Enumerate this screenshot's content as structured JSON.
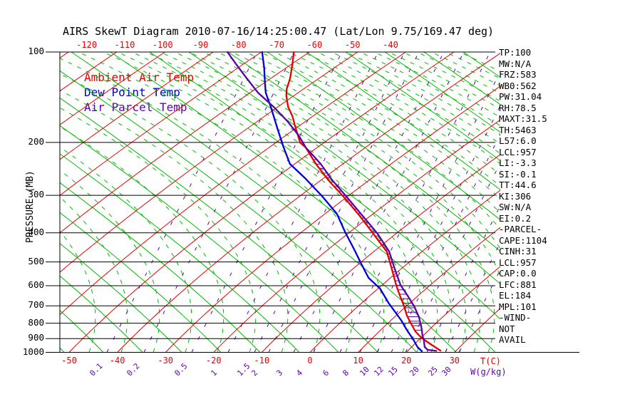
{
  "title": "AIRS SkewT Diagram 2010-07-16/14:25:00.47 (Lat/Lon 9.75/169.47 deg)",
  "colors": {
    "ambient": "#e60000",
    "dewpoint": "#0000dd",
    "parcel": "#5c00a8",
    "adiabat_green": "#00bb00",
    "isotherm_red": "#e60000",
    "grid_black": "#000000"
  },
  "legend": [
    {
      "label": "Ambient Air Temp",
      "color": "ambient"
    },
    {
      "label": "Dew Point Temp",
      "color": "dewpoint"
    },
    {
      "label": "Air Parcel Temp",
      "color": "parcel"
    }
  ],
  "axes": {
    "pressure_title": "PRESSURE (MB)",
    "pressure_ticks": [
      100,
      200,
      300,
      400,
      500,
      600,
      700,
      800,
      900,
      1000
    ],
    "temp_unit": "T(C)",
    "mixing_unit": "W(g/kg)",
    "top_temp_ticks": [
      -120,
      -110,
      -100,
      -90,
      -80,
      -70,
      -60,
      -50,
      -40
    ],
    "bottom_temp_ticks": [
      -50,
      -40,
      -30,
      -20,
      -10,
      0,
      10,
      20,
      30
    ],
    "mixing_ticks": [
      [
        "0.1",
        138
      ],
      [
        "0.2",
        190
      ],
      [
        "0.5",
        257
      ],
      [
        "1",
        308
      ],
      [
        "1.5",
        345
      ],
      [
        "2",
        365
      ],
      [
        "3",
        400
      ],
      [
        "4",
        428
      ],
      [
        "6",
        465
      ],
      [
        "8",
        493
      ],
      [
        "10",
        517
      ],
      [
        "12",
        537
      ],
      [
        "15",
        557
      ],
      [
        "20",
        587
      ],
      [
        "25",
        613
      ],
      [
        "30",
        632
      ]
    ]
  },
  "stats": [
    "TP:100",
    "MW:N/A",
    "FRZ:583",
    "WB0:562",
    "PW:31.04",
    "RH:78.5",
    "MAXT:31.5",
    "TH:5463",
    "L57:6.0",
    "LCL:957",
    "LI:-3.3",
    "SI:-0.1",
    "TT:44.6",
    "KI:306",
    "SW:N/A",
    "EI:0.2",
    "-PARCEL-",
    "CAPE:1104",
    "CINH:31",
    "LCL:957",
    "CAP:0.0",
    "LFC:881",
    "EL:184",
    "MPL:101",
    "-WIND-",
    "NOT",
    "AVAIL"
  ],
  "chart_data": {
    "type": "line",
    "subtype": "skewt-log-p",
    "title": "AIRS SkewT Diagram 2010-07-16/14:25:00.47 (Lat/Lon 9.75/169.47 deg)",
    "xlabel": "T(C)",
    "ylabel": "PRESSURE (MB)",
    "ylim": [
      1000,
      100
    ],
    "xlim_bottom": [
      -50,
      35
    ],
    "grid": true,
    "legend_position": "top-left-inside",
    "series": [
      {
        "name": "Ambient Air Temp",
        "color": "ambient",
        "points_p_t": [
          [
            100,
            -65.7
          ],
          [
            109.7,
            -63.5
          ],
          [
            122.4,
            -61.0
          ],
          [
            132.9,
            -59.5
          ],
          [
            140.3,
            -58.1
          ],
          [
            152.3,
            -55.5
          ],
          [
            163.5,
            -52.7
          ],
          [
            179.4,
            -49.5
          ],
          [
            200.2,
            -45.6
          ],
          [
            208.0,
            -43.4
          ],
          [
            223.3,
            -40.3
          ],
          [
            235.8,
            -37.9
          ],
          [
            267.3,
            -31.9
          ],
          [
            306.5,
            -24.8
          ],
          [
            351.3,
            -18.0
          ],
          [
            402.7,
            -11.5
          ],
          [
            461.6,
            -5.0
          ],
          [
            520.6,
            -0.8
          ],
          [
            596.6,
            3.9
          ],
          [
            647.6,
            6.9
          ],
          [
            702.9,
            10.0
          ],
          [
            754.8,
            12.5
          ],
          [
            806.1,
            15.2
          ],
          [
            851.3,
            17.5
          ],
          [
            884.4,
            19.5
          ],
          [
            913.9,
            21.5
          ],
          [
            944.4,
            23.7
          ],
          [
            986.4,
            26.7
          ]
        ]
      },
      {
        "name": "Dew Point Temp",
        "color": "dewpoint",
        "points_p_t": [
          [
            100,
            -72.3
          ],
          [
            112.8,
            -68.6
          ],
          [
            125.8,
            -65.5
          ],
          [
            136.6,
            -63.1
          ],
          [
            152.3,
            -59.1
          ],
          [
            179.4,
            -53.3
          ],
          [
            205.7,
            -48.4
          ],
          [
            235.8,
            -43.3
          ],
          [
            263.0,
            -37.2
          ],
          [
            301.5,
            -30.0
          ],
          [
            345.6,
            -23.2
          ],
          [
            400.5,
            -17.4
          ],
          [
            454.1,
            -12.2
          ],
          [
            506.6,
            -7.8
          ],
          [
            565.1,
            -3.3
          ],
          [
            613.2,
            1.3
          ],
          [
            684.0,
            6.0
          ],
          [
            784.3,
            12.4
          ],
          [
            837.5,
            15.2
          ],
          [
            908.9,
            18.9
          ],
          [
            960.1,
            21.2
          ],
          [
            991.8,
            23.0
          ]
        ]
      },
      {
        "name": "Air Parcel Temp",
        "color": "parcel",
        "points_p_t": [
          [
            100,
            -79.5
          ],
          [
            109.7,
            -75.2
          ],
          [
            122.4,
            -70.0
          ],
          [
            136.6,
            -64.7
          ],
          [
            152.3,
            -58.5
          ],
          [
            169.9,
            -52.7
          ],
          [
            189.5,
            -47.4
          ],
          [
            208.0,
            -43.4
          ],
          [
            223.3,
            -39.7
          ],
          [
            235.8,
            -36.9
          ],
          [
            267.3,
            -31.1
          ],
          [
            306.5,
            -24.2
          ],
          [
            351.3,
            -17.4
          ],
          [
            402.7,
            -10.6
          ],
          [
            461.6,
            -4.5
          ],
          [
            520.6,
            -0.2
          ],
          [
            596.6,
            4.8
          ],
          [
            647.6,
            8.5
          ],
          [
            702.9,
            12.1
          ],
          [
            763.1,
            15.3
          ],
          [
            819.4,
            17.7
          ],
          [
            874.8,
            19.7
          ],
          [
            913.9,
            21.2
          ],
          [
            960.1,
            22.7
          ],
          [
            981.0,
            23.9
          ],
          [
            989.1,
            25.9
          ]
        ]
      }
    ],
    "cape_hatch": {
      "between": [
        "Ambient Air Temp",
        "Air Parcel Temp"
      ],
      "p_top": 213,
      "p_bottom": 845
    },
    "background_families": {
      "isotherms_c": {
        "min": -160,
        "max": 40,
        "step": 10
      },
      "dry_adiabats": {
        "foot_x_min": 90,
        "foot_x_max": 1250,
        "spacing": 55
      },
      "moist_adiabats": {
        "foot_x_ranges": [
          [
            125,
            545,
            45
          ],
          [
            565,
            1065,
            20
          ]
        ]
      }
    }
  }
}
